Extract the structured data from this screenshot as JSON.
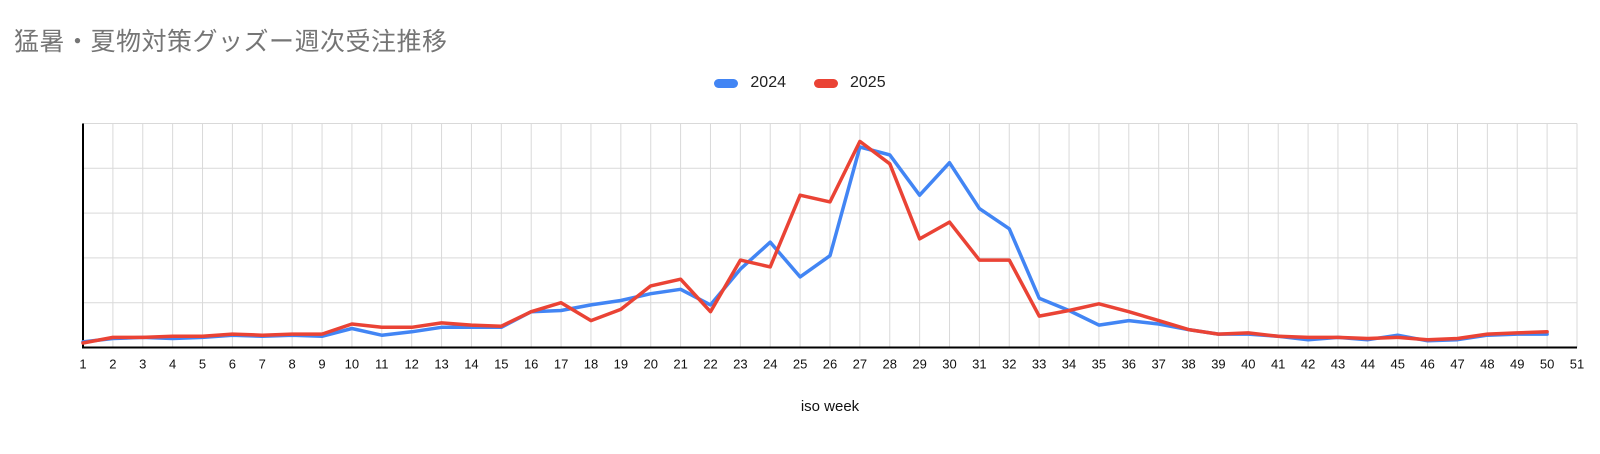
{
  "page": {
    "background": "#ffffff"
  },
  "chart_data": {
    "type": "line",
    "title": "猛暑・夏物対策グッズー週次受注推移",
    "title_color": "#757575",
    "xlabel": "iso week",
    "ylabel": "",
    "x_tick_labels": [
      "1",
      "2",
      "3",
      "4",
      "5",
      "6",
      "7",
      "8",
      "9",
      "10",
      "11",
      "12",
      "13",
      "14",
      "15",
      "16",
      "17",
      "18",
      "19",
      "20",
      "21",
      "22",
      "23",
      "24",
      "25",
      "26",
      "27",
      "28",
      "29",
      "30",
      "31",
      "32",
      "33",
      "34",
      "35",
      "36",
      "37",
      "38",
      "39",
      "40",
      "41",
      "42",
      "43",
      "44",
      "45",
      "46",
      "47",
      "48",
      "49",
      "50",
      "51"
    ],
    "x": [
      1,
      2,
      3,
      4,
      5,
      6,
      7,
      8,
      9,
      10,
      11,
      12,
      13,
      14,
      15,
      16,
      17,
      18,
      19,
      20,
      21,
      22,
      23,
      24,
      25,
      26,
      27,
      28,
      29,
      30,
      31,
      32,
      33,
      34,
      35,
      36,
      37,
      38,
      39,
      40,
      41,
      42,
      43,
      44,
      45,
      46,
      47,
      48,
      49,
      50
    ],
    "series": [
      {
        "name": "2024",
        "color": "#4285F4",
        "values": [
          2.5,
          4,
          4.5,
          4,
          4.5,
          5.5,
          5,
          5.5,
          5,
          8.5,
          5.5,
          7,
          9,
          9,
          9,
          16,
          16.5,
          19,
          21,
          24,
          26,
          19,
          35,
          47,
          31.5,
          41,
          89.5,
          86,
          68,
          82.5,
          62,
          53,
          22,
          16.5,
          10,
          12,
          10.5,
          8,
          6,
          6,
          5,
          3.5,
          4.5,
          3.5,
          5.5,
          3,
          3.5,
          5.5,
          6,
          6
        ]
      },
      {
        "name": "2025",
        "color": "#EA4335",
        "values": [
          2,
          4.5,
          4.5,
          5,
          5,
          6,
          5.5,
          6,
          6,
          10.5,
          9,
          9,
          11,
          10,
          9.5,
          16,
          20,
          12,
          17,
          27.5,
          30.5,
          16,
          39,
          36,
          68,
          65,
          92,
          82,
          48.5,
          56,
          39,
          39,
          14,
          16.5,
          19.5,
          16,
          12,
          8,
          6,
          6.5,
          5,
          4.5,
          4.5,
          4,
          4.5,
          3.5,
          4,
          6,
          6.5,
          7
        ]
      }
    ],
    "ylim": [
      0,
      100
    ],
    "y_gridline_step": 20,
    "y_tick_labels_shown": false,
    "grid": true,
    "legend_position": "top-center",
    "gridline_color": "#d9d9d9",
    "axis_color": "#000000",
    "tick_label_color": "#111111",
    "tick_label_font_px": 13
  }
}
